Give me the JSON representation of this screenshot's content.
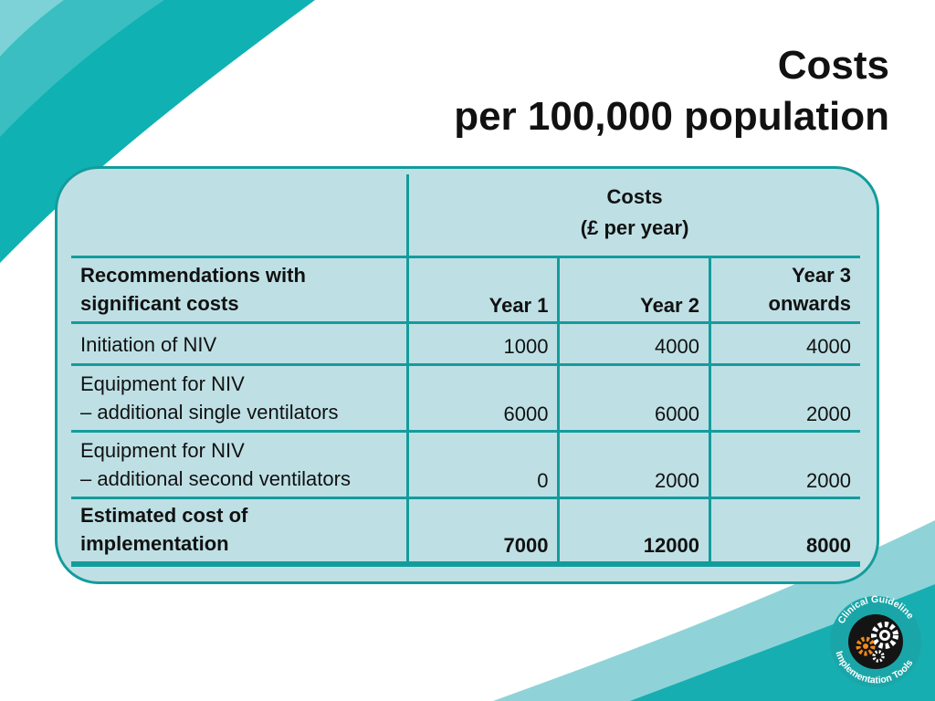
{
  "slide": {
    "title_line1": "Costs",
    "title_line2": "per 100,000 population"
  },
  "table": {
    "group_header_line1": "Costs",
    "group_header_line2": "(£ per year)",
    "row_header_line1": "Recommendations with",
    "row_header_line2": "significant costs",
    "col_year1": "Year 1",
    "col_year2": "Year 2",
    "col_year3_line1": "Year 3",
    "col_year3_line2": "onwards",
    "rows": [
      {
        "label_line1": "Initiation of NIV",
        "label_line2": "",
        "year1": "1000",
        "year2": "4000",
        "year3": "4000"
      },
      {
        "label_line1": "Equipment for NIV",
        "label_line2": "– additional single ventilators",
        "year1": "6000",
        "year2": "6000",
        "year3": "2000"
      },
      {
        "label_line1": "Equipment for NIV",
        "label_line2": "– additional second ventilators",
        "year1": "0",
        "year2": "2000",
        "year3": "2000"
      }
    ],
    "total": {
      "label_line1": "Estimated cost of",
      "label_line2": "implementation",
      "year1": "7000",
      "year2": "12000",
      "year3": "8000"
    }
  },
  "logo": {
    "text_top": "Clinical Guideline",
    "text_bottom": "Implementation Tools",
    "icon": "gears-icon"
  },
  "colors": {
    "teal": "#149c9c",
    "teal_light": "#7fcfd6",
    "panel": "#bee0e5"
  }
}
